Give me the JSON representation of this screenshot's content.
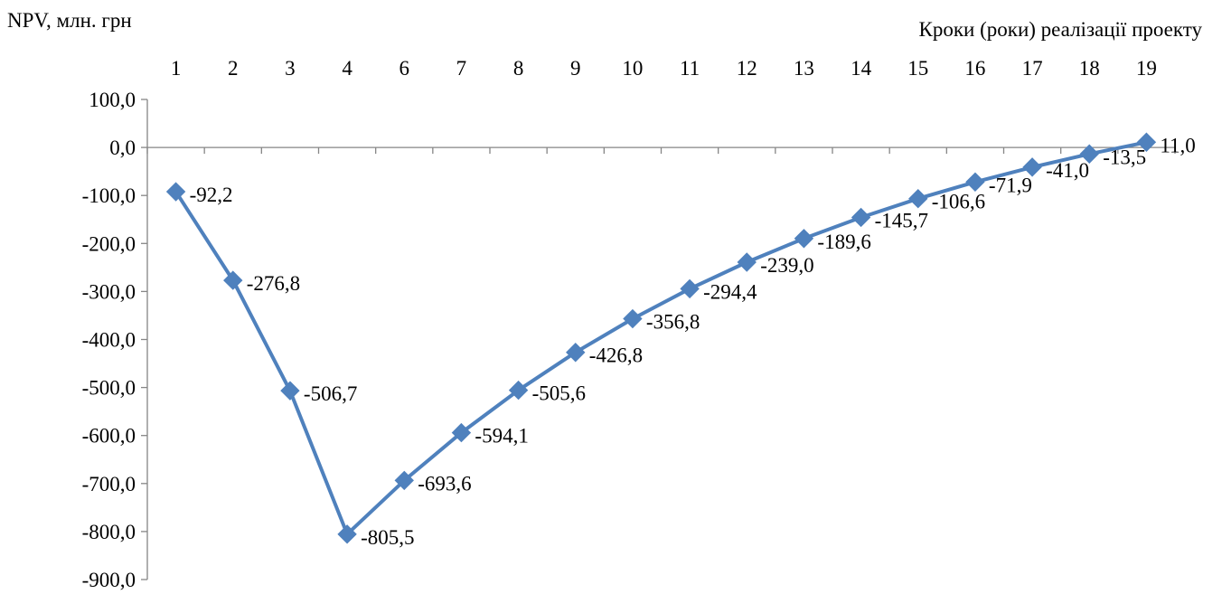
{
  "chart_data": {
    "type": "line",
    "ylabel": "NPV, млн. грн",
    "xlabel": "Кроки (роки) реалізації проекту",
    "categories": [
      "1",
      "2",
      "3",
      "4",
      "6",
      "7",
      "8",
      "9",
      "10",
      "11",
      "12",
      "13",
      "14",
      "15",
      "16",
      "17",
      "18",
      "19"
    ],
    "series": [
      {
        "values": [
          -92.2,
          -276.8,
          -506.7,
          -805.5,
          -693.6,
          -594.1,
          -505.6,
          -426.8,
          -356.8,
          -294.4,
          -239.0,
          -189.6,
          -145.7,
          -106.6,
          -71.9,
          -41.0,
          -13.5,
          11.0
        ],
        "labels": [
          "-92,2",
          "-276,8",
          "-506,7",
          "-805,5",
          "-693,6",
          "-594,1",
          "-505,6",
          "-426,8",
          "-356,8",
          "-294,4",
          "-239,0",
          "-189,6",
          "-145,7",
          "-106,6",
          "-71,9",
          "-41,0",
          "-13,5",
          "11,0"
        ]
      }
    ],
    "yticks": [
      100,
      0,
      -100,
      -200,
      -300,
      -400,
      -500,
      -600,
      -700,
      -800,
      -900
    ],
    "ytick_labels": [
      "100,0",
      "0,0",
      "-100,0",
      "-200,0",
      "-300,0",
      "-400,0",
      "-500,0",
      "-600,0",
      "-700,0",
      "-800,0",
      "-900,0"
    ],
    "ylim": [
      -900,
      100
    ],
    "x_axis_position": "top",
    "grid": false,
    "legend": "none",
    "colors": {
      "line": "#4F81BD",
      "axis": "#868686"
    }
  }
}
